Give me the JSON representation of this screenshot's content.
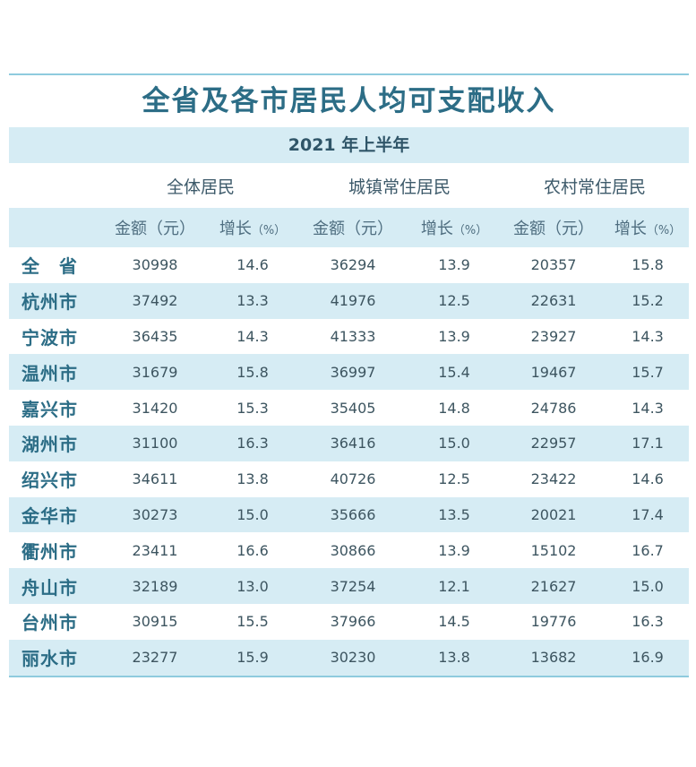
{
  "title": "全省及各市居民人均可支配收入",
  "period": "2021 年上半年",
  "groups": [
    "全体居民",
    "城镇常住居民",
    "农村常住居民"
  ],
  "columns": [
    {
      "label": "金额（元）"
    },
    {
      "label": "增长",
      "unit": "（%）"
    },
    {
      "label": "金额（元）"
    },
    {
      "label": "增长",
      "unit": "（%）"
    },
    {
      "label": "金额（元）"
    },
    {
      "label": "增长",
      "unit": "（%）"
    }
  ],
  "rows": [
    {
      "region": "全　省",
      "all_amount": "30998",
      "all_growth": "14.6",
      "urban_amount": "36294",
      "urban_growth": "13.9",
      "rural_amount": "20357",
      "rural_growth": "15.8"
    },
    {
      "region": "杭州市",
      "all_amount": "37492",
      "all_growth": "13.3",
      "urban_amount": "41976",
      "urban_growth": "12.5",
      "rural_amount": "22631",
      "rural_growth": "15.2"
    },
    {
      "region": "宁波市",
      "all_amount": "36435",
      "all_growth": "14.3",
      "urban_amount": "41333",
      "urban_growth": "13.9",
      "rural_amount": "23927",
      "rural_growth": "14.3"
    },
    {
      "region": "温州市",
      "all_amount": "31679",
      "all_growth": "15.8",
      "urban_amount": "36997",
      "urban_growth": "15.4",
      "rural_amount": "19467",
      "rural_growth": "15.7"
    },
    {
      "region": "嘉兴市",
      "all_amount": "31420",
      "all_growth": "15.3",
      "urban_amount": "35405",
      "urban_growth": "14.8",
      "rural_amount": "24786",
      "rural_growth": "14.3"
    },
    {
      "region": "湖州市",
      "all_amount": "31100",
      "all_growth": "16.3",
      "urban_amount": "36416",
      "urban_growth": "15.0",
      "rural_amount": "22957",
      "rural_growth": "17.1"
    },
    {
      "region": "绍兴市",
      "all_amount": "34611",
      "all_growth": "13.8",
      "urban_amount": "40726",
      "urban_growth": "12.5",
      "rural_amount": "23422",
      "rural_growth": "14.6"
    },
    {
      "region": "金华市",
      "all_amount": "30273",
      "all_growth": "15.0",
      "urban_amount": "35666",
      "urban_growth": "13.5",
      "rural_amount": "20021",
      "rural_growth": "17.4"
    },
    {
      "region": "衢州市",
      "all_amount": "23411",
      "all_growth": "16.6",
      "urban_amount": "30866",
      "urban_growth": "13.9",
      "rural_amount": "15102",
      "rural_growth": "16.7"
    },
    {
      "region": "舟山市",
      "all_amount": "32189",
      "all_growth": "13.0",
      "urban_amount": "37254",
      "urban_growth": "12.1",
      "rural_amount": "21627",
      "rural_growth": "15.0"
    },
    {
      "region": "台州市",
      "all_amount": "30915",
      "all_growth": "15.5",
      "urban_amount": "37966",
      "urban_growth": "14.5",
      "rural_amount": "19776",
      "rural_growth": "16.3"
    },
    {
      "region": "丽水市",
      "all_amount": "23277",
      "all_growth": "15.9",
      "urban_amount": "30230",
      "urban_growth": "13.8",
      "rural_amount": "13682",
      "rural_growth": "16.9"
    }
  ],
  "colors": {
    "accent": "#2c6d86",
    "band": "#d6ecf4",
    "rule": "#8ecbde"
  }
}
